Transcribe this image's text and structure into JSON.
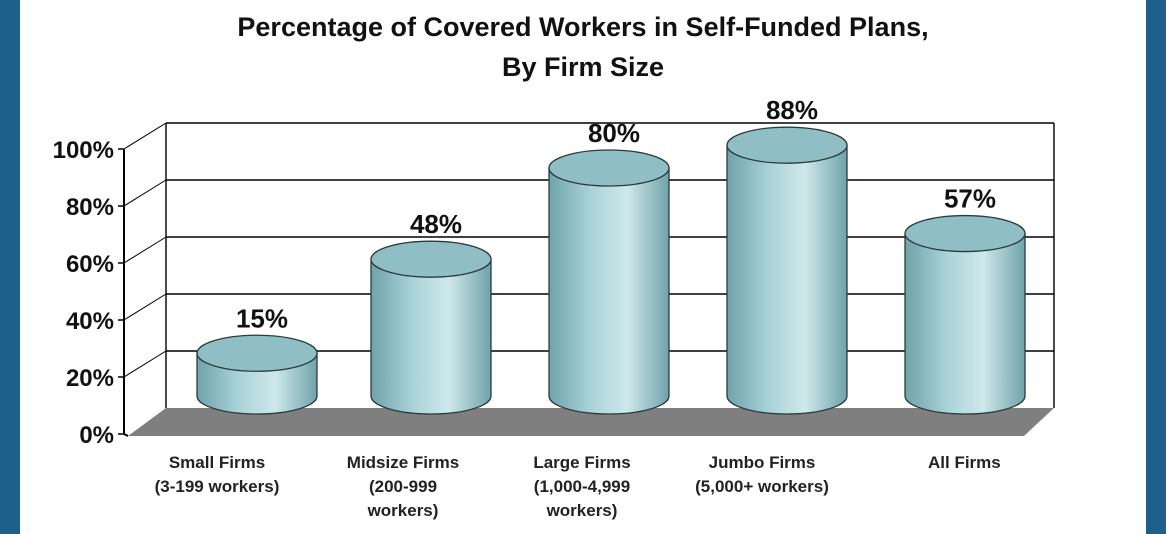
{
  "chart_data": {
    "type": "bar",
    "title": "Percentage of Covered Workers in Self-Funded Plans,",
    "subtitle": "By Firm Size",
    "categories": [
      [
        "Small Firms",
        "(3-199 workers)"
      ],
      [
        "Midsize Firms",
        "(200-999",
        "workers)"
      ],
      [
        "Large Firms",
        "(1,000-4,999",
        "workers)"
      ],
      [
        "Jumbo Firms",
        "(5,000+ workers)"
      ],
      [
        "All Firms"
      ]
    ],
    "values": [
      15,
      48,
      80,
      88,
      57
    ],
    "value_labels": [
      "15%",
      "48%",
      "80%",
      "88%",
      "57%"
    ],
    "ylim": [
      0,
      100
    ],
    "yticks": [
      0,
      20,
      40,
      60,
      80,
      100
    ],
    "ytick_labels": [
      "0%",
      "20%",
      "40%",
      "60%",
      "80%",
      "100%"
    ],
    "grid": true,
    "style": "3d-cylinder",
    "colors": {
      "bar": "#a9d3d8",
      "bar_dark": "#6fa3aa",
      "floor": "#7f7f7f",
      "frame": "#1f5f8b"
    }
  }
}
